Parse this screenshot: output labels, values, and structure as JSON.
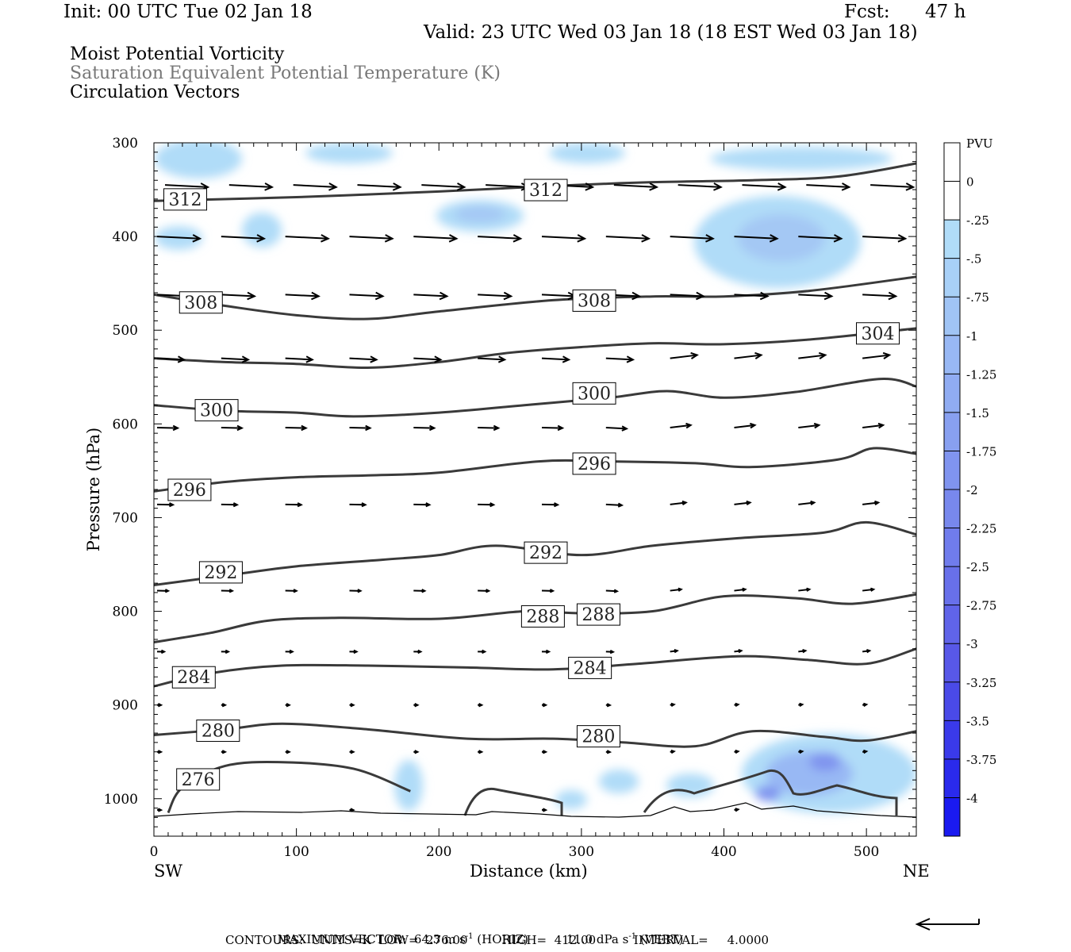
{
  "header": {
    "init": "Init: 00 UTC Tue 02 Jan 18",
    "fcst_label": "Fcst:",
    "fcst_value": "47 h",
    "valid": "Valid: 23 UTC Wed 03 Jan 18 (18 EST Wed 03 Jan 18)"
  },
  "fields": {
    "line1": "Moist Potential Vorticity",
    "line2": "Saturation Equivalent Potential Temperature (K)",
    "line3": "Circulation Vectors"
  },
  "footer": {
    "max_vector": "MAXIMUM VECTOR:  64.3 m s",
    "max_vector_sup": "-1",
    "max_vector_mid": " (HORIZ)          11.0 dPa s",
    "max_vector_sup2": "-1",
    "max_vector_end": " (VERT)",
    "contours": "CONTOURS:  UNITS=K  LOW=  276.00         HIGH=  412.00          INTERVAL=     4.0000"
  },
  "colors": {
    "light_blue": "#b0dcf8",
    "mid_blue": "#a4c8f4",
    "contour": "#3a3a3a"
  },
  "chart_data": {
    "type": "contour",
    "xlabel": "Distance (km)",
    "ylabel": "Pressure (hPa)",
    "x_ticks": [
      "0",
      "100",
      "200",
      "300",
      "400",
      "500"
    ],
    "y_ticks": [
      "300",
      "400",
      "500",
      "600",
      "700",
      "800",
      "900",
      "1000"
    ],
    "xlim": [
      0,
      535
    ],
    "ylim": [
      1040,
      300
    ],
    "y_scale": "linear-reversed",
    "left_end_label": "SW",
    "right_end_label": "NE",
    "colorbar": {
      "unit": "PVU",
      "labels": [
        "0",
        "-.25",
        "-.5",
        "-.75",
        "-1",
        "-1.25",
        "-1.5",
        "-1.75",
        "-2",
        "-2.25",
        "-2.5",
        "-2.75",
        "-3",
        "-3.25",
        "-3.5",
        "-3.75",
        "-4"
      ],
      "colors": [
        "#ffffff",
        "#ffffff",
        "#b0dcf8",
        "#a8d0f7",
        "#a0c4f5",
        "#98b8f4",
        "#90acf2",
        "#88a0f0",
        "#8094ef",
        "#7888ed",
        "#707cec",
        "#6870ea",
        "#6064e9",
        "#5858e8",
        "#4a4ae8",
        "#3a3aea",
        "#2a2aec",
        "#1a1af0"
      ]
    },
    "contour_labels": [
      {
        "value": "312",
        "x": 22,
        "p": 360
      },
      {
        "value": "312",
        "x": 275,
        "p": 350
      },
      {
        "value": "308",
        "x": 33,
        "p": 470
      },
      {
        "value": "308",
        "x": 309,
        "p": 468
      },
      {
        "value": "304",
        "x": 508,
        "p": 503
      },
      {
        "value": "300",
        "x": 44,
        "p": 585
      },
      {
        "value": "300",
        "x": 309,
        "p": 567
      },
      {
        "value": "296",
        "x": 25,
        "p": 670
      },
      {
        "value": "296",
        "x": 309,
        "p": 642
      },
      {
        "value": "292",
        "x": 47,
        "p": 758
      },
      {
        "value": "292",
        "x": 275,
        "p": 737
      },
      {
        "value": "288",
        "x": 273,
        "p": 805
      },
      {
        "value": "288",
        "x": 312,
        "p": 803
      },
      {
        "value": "284",
        "x": 28,
        "p": 870
      },
      {
        "value": "284",
        "x": 306,
        "p": 860
      },
      {
        "value": "280",
        "x": 45,
        "p": 927
      },
      {
        "value": "280",
        "x": 312,
        "p": 933
      },
      {
        "value": "276",
        "x": 31,
        "p": 979
      }
    ],
    "isentropes": [
      {
        "value": 312,
        "x": [
          0,
          100,
          200,
          280,
          350,
          420,
          480,
          535
        ],
        "p": [
          362,
          358,
          352,
          346,
          342,
          340,
          336,
          322
        ]
      },
      {
        "value": 308,
        "x": [
          0,
          50,
          100,
          150,
          200,
          280,
          350,
          400,
          460,
          535
        ],
        "p": [
          462,
          474,
          484,
          488,
          480,
          468,
          464,
          464,
          458,
          443
        ]
      },
      {
        "value": 304,
        "x": [
          0,
          50,
          100,
          150,
          200,
          250,
          300,
          350,
          400,
          460,
          535
        ],
        "p": [
          530,
          534,
          536,
          540,
          534,
          524,
          518,
          514,
          515,
          510,
          498
        ]
      },
      {
        "value": 300,
        "x": [
          0,
          50,
          100,
          140,
          200,
          260,
          320,
          360,
          400,
          450,
          510,
          535
        ],
        "p": [
          580,
          586,
          588,
          592,
          588,
          580,
          572,
          565,
          572,
          566,
          552,
          560
        ]
      },
      {
        "value": 296,
        "x": [
          0,
          50,
          100,
          150,
          200,
          270,
          320,
          380,
          420,
          480,
          505,
          535
        ],
        "p": [
          672,
          662,
          657,
          655,
          652,
          640,
          640,
          642,
          646,
          638,
          626,
          632
        ]
      },
      {
        "value": 292,
        "x": [
          0,
          50,
          100,
          160,
          200,
          240,
          300,
          350,
          410,
          470,
          500,
          535
        ],
        "p": [
          772,
          762,
          752,
          745,
          740,
          730,
          740,
          730,
          722,
          716,
          705,
          718
        ]
      },
      {
        "value": 288,
        "x": [
          0,
          40,
          80,
          130,
          200,
          260,
          300,
          350,
          400,
          450,
          490,
          535
        ],
        "p": [
          833,
          823,
          810,
          807,
          808,
          800,
          802,
          800,
          784,
          786,
          792,
          782
        ]
      },
      {
        "value": 284,
        "x": [
          0,
          40,
          90,
          150,
          220,
          280,
          340,
          410,
          460,
          500,
          535
        ],
        "p": [
          880,
          866,
          858,
          858,
          860,
          862,
          856,
          848,
          852,
          856,
          840
        ]
      },
      {
        "value": 280,
        "x": [
          0,
          50,
          90,
          150,
          220,
          280,
          330,
          380,
          420,
          470,
          500,
          535
        ],
        "p": [
          932,
          926,
          920,
          926,
          936,
          936,
          940,
          944,
          928,
          934,
          938,
          928
        ]
      },
      {
        "value": 276,
        "x": [
          10,
          20,
          50,
          90,
          140,
          180
        ],
        "p": [
          1015,
          988,
          965,
          961,
          968,
          992
        ]
      }
    ],
    "vectors": {
      "max_horizontal": "64.3 m s-1",
      "max_vertical": "11.0 dPa s-1",
      "levels": [
        345,
        400,
        462,
        530,
        604,
        686,
        778,
        843,
        900,
        950,
        1012
      ],
      "x_positions": [
        0,
        45,
        90,
        135,
        180,
        225,
        270,
        315,
        360,
        405,
        450,
        495
      ]
    }
  }
}
